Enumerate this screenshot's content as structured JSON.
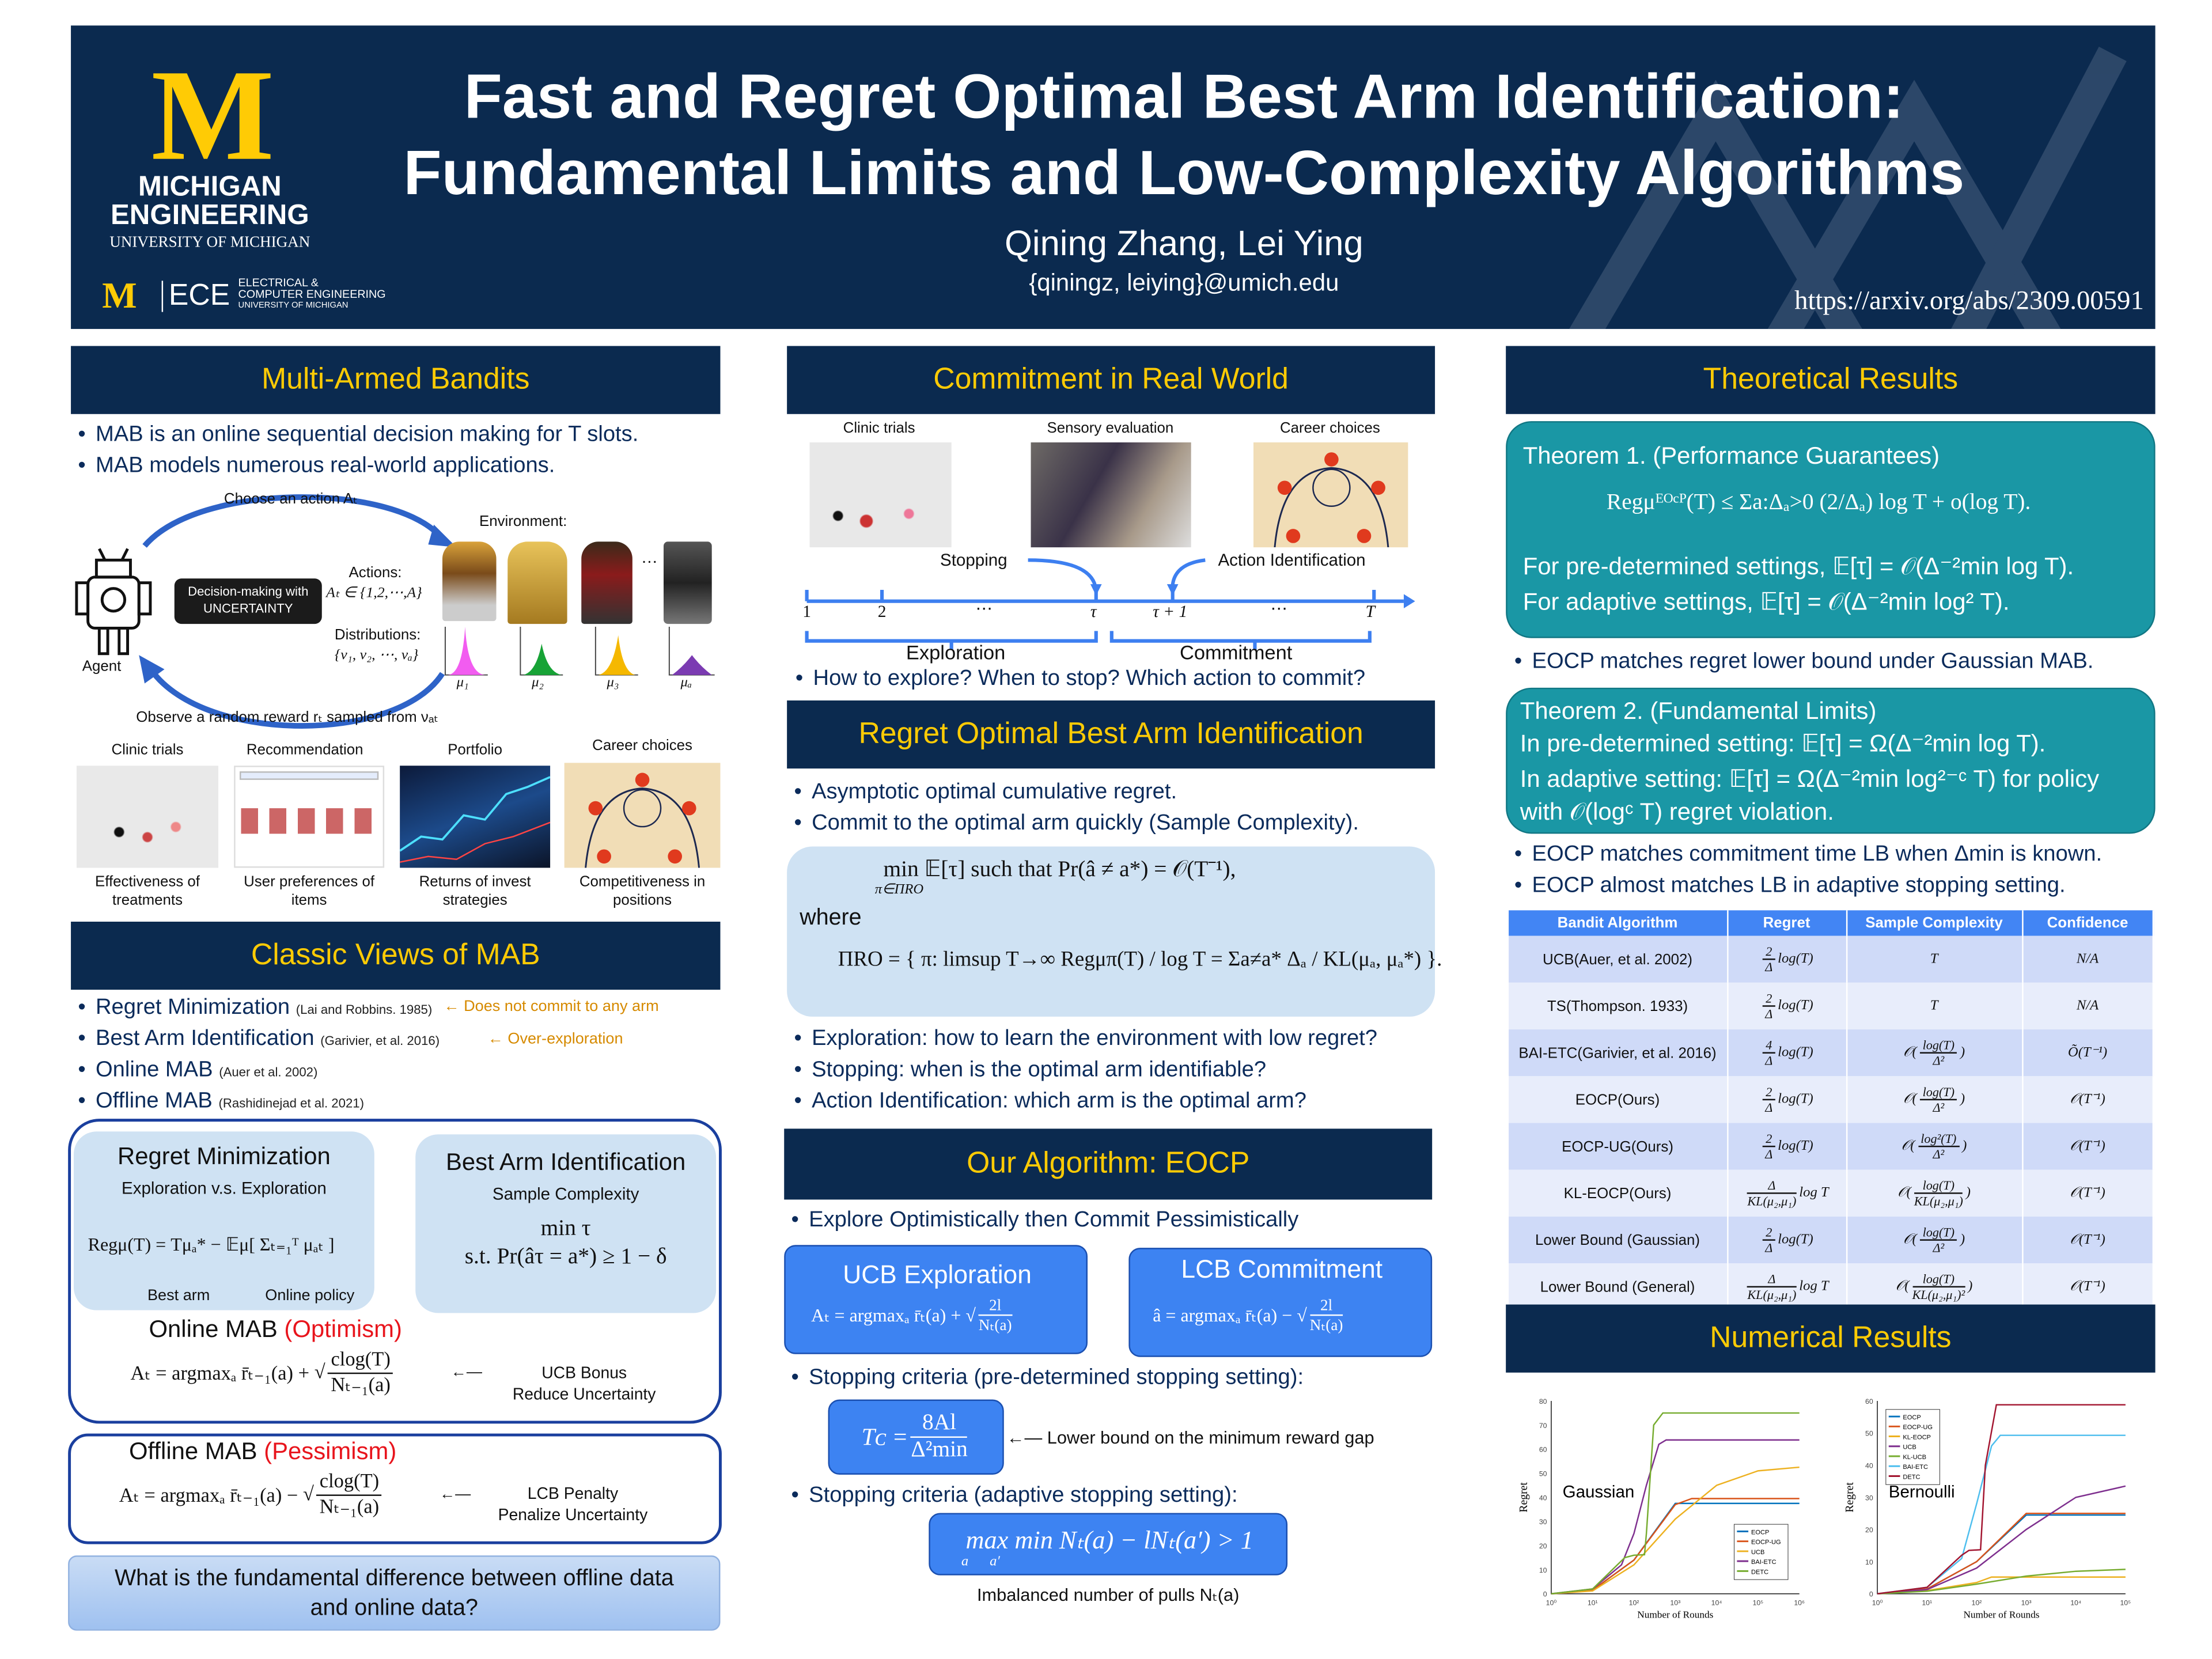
{
  "header": {
    "logo_letter": "M",
    "logo_line1": "MICHIGAN",
    "logo_line2": "ENGINEERING",
    "logo_line3": "UNIVERSITY OF MICHIGAN",
    "ece_logo": "ECE",
    "ece_line1": "ELECTRICAL &",
    "ece_line2": "COMPUTER ENGINEERING",
    "ece_line3": "UNIVERSITY OF MICHIGAN",
    "title_line1": "Fast and Regret Optimal Best Arm Identification:",
    "title_line2": "Fundamental Limits and Low-Complexity Algorithms",
    "authors": "Qining Zhang, Lei Ying",
    "email": "{qiningz, leiying}@umich.edu",
    "arxiv": "https://arxiv.org/abs/2309.00591"
  },
  "colors": {
    "navy": "#0b2a4f",
    "maize": "#ffcb05",
    "teal": "#1a97a5",
    "blue": "#3d83f2",
    "light_blue": "#cfe2f3"
  },
  "mab": {
    "title": "Multi-Armed Bandits",
    "bullets": [
      "MAB is an online sequential decision making for T slots.",
      "MAB models numerous real-world applications."
    ],
    "choose_action": "Choose an action Aₜ",
    "environment": "Environment:",
    "decision_box": [
      "Decision-making with",
      "UNCERTAINTY"
    ],
    "actions_label": "Actions:",
    "actions_set": "Aₜ ∈ {1,2,⋯,A}",
    "distributions_label": "Distributions:",
    "distributions_set": "{ν₁, ν₂, ⋯, νₐ}",
    "agent": "Agent",
    "dots": "…",
    "means": [
      "μ₁",
      "μ₂",
      "μ₃",
      "μₐ"
    ],
    "observe": "Observe a random reward rₜ sampled from νₐₜ",
    "apps": [
      {
        "title": "Clinic trials",
        "caption": "Effectiveness of treatments"
      },
      {
        "title": "Recommendation",
        "caption": "User preferences of items"
      },
      {
        "title": "Portfolio",
        "caption": "Returns of invest strategies"
      },
      {
        "title": "Career choices",
        "caption": "Competitiveness in positions"
      }
    ]
  },
  "classic": {
    "title": "Classic Views of MAB",
    "items": [
      {
        "label": "Regret Minimization",
        "cite": "(Lai and Robbins. 1985)",
        "note": "Does not commit to any arm"
      },
      {
        "label": "Best Arm Identification",
        "cite": "(Garivier, et al. 2016)",
        "note": "Over-exploration"
      },
      {
        "label": "Online MAB",
        "cite": "(Auer et al. 2002)"
      },
      {
        "label": "Offline MAB",
        "cite": "(Rashidinejad et al. 2021)"
      }
    ],
    "rm_title": "Regret Minimization",
    "rm_sub": "Exploration v.s. Exploration",
    "rm_formula": "Regμ(T) = Tμₐ* − 𝔼μ[ Σₜ₌₁ᵀ μₐₜ ]",
    "best_arm": "Best arm",
    "online_policy": "Online policy",
    "bai_title": "Best Arm Identification",
    "bai_sub": "Sample Complexity",
    "bai_line1": "min τ",
    "bai_line2": "s.t. Pr(âτ = a*) ≥ 1 − δ",
    "online_title": "Online MAB",
    "online_paren": "(Optimism)",
    "online_formula_pre": "Aₜ = argmaxₐ r̄ₜ₋₁(a) +",
    "online_num": "clog(T)",
    "online_den": "Nₜ₋₁(a)",
    "ucb_bonus": [
      "UCB Bonus",
      "Reduce Uncertainty"
    ],
    "offline_title": "Offline MAB",
    "offline_paren": "(Pessimism)",
    "offline_formula_pre": "Aₜ = argmaxₐ r̄ₜ₋₁(a) −",
    "offline_num": "clog(T)",
    "offline_den": "Nₜ₋₁(a)",
    "lcb_penalty": [
      "LCB Penalty",
      "Penalize Uncertainty"
    ],
    "question": "What is the fundamental difference between offline data and online data?"
  },
  "commitment": {
    "title": "Commitment in Real World",
    "images": [
      "Clinic trials",
      "Sensory evaluation",
      "Career choices"
    ],
    "stopping": "Stopping",
    "action_id": "Action Identification",
    "ticks": [
      "1",
      "2",
      "⋯",
      "τ",
      "τ + 1",
      "⋯",
      "T"
    ],
    "exploration": "Exploration",
    "commitment": "Commitment",
    "question": "How to explore? When to stop? Which action to commit?"
  },
  "robai": {
    "title": "Regret Optimal Best Arm Identification",
    "bullets": [
      "Asymptotic optimal cumulative regret.",
      "Commit to the optimal arm quickly (Sample Complexity)."
    ],
    "formula1": "min  𝔼[τ] such that Pr(â ≠ a*) = 𝒪(T⁻¹),",
    "formula1_sub": "π∈ΠRO",
    "where": "where",
    "formula2": "ΠRO = { π: limsup T→∞  Regμπ(T) / log T  =  Σa≠a*  Δₐ / KL(μₐ, μₐ*) }.",
    "bullets2": [
      "Exploration: how to learn the environment with low regret?",
      "Stopping: when is the optimal arm identifiable?",
      "Action Identification: which arm is the optimal arm?"
    ]
  },
  "eocp": {
    "title": "Our Algorithm: EOCP",
    "bullet": "Explore Optimistically then Commit Pessimistically",
    "ucb_title": "UCB Exploration",
    "ucb_formula": "Aₜ = argmaxₐ r̄ₜ(a) +",
    "ucb_num": "2l",
    "ucb_den": "Nₜ(a)",
    "lcb_title": "LCB Commitment",
    "lcb_formula": "â = argmaxₐ r̄ₜ(a) −",
    "lcb_num": "2l",
    "lcb_den": "Nₜ(a)",
    "stop1": "Stopping criteria (pre-determined stopping setting):",
    "tc_lhs": "Tᴄ =",
    "tc_num": "8Al",
    "tc_den": "Δ²min",
    "tc_note": "Lower bound on the minimum reward gap",
    "stop2": "Stopping criteria (adaptive stopping setting):",
    "adaptive": "max min Nₜ(a) − lNₜ(a′) > 1",
    "adaptive_sub": "a      a′",
    "adaptive_note": "Imbalanced  number of pulls Nₜ(a)"
  },
  "theory": {
    "title": "Theoretical Results",
    "thm1_title": "Theorem 1. (Performance Guarantees)",
    "thm1_formula": "Regμᴱᴼᶜᴾ(T) ≤  Σa:Δₐ>0  (2/Δₐ) log T + o(log T).",
    "thm1_line2": "For pre-determined settings, 𝔼[τ] = 𝒪(Δ⁻²min log T).",
    "thm1_line3": "For adaptive settings, 𝔼[τ] = 𝒪(Δ⁻²min log² T).",
    "bullet1": "EOCP matches regret lower bound under Gaussian MAB.",
    "thm2_title": "Theorem 2. (Fundamental Limits)",
    "thm2_line1": "In pre-determined setting: 𝔼[τ] = Ω(Δ⁻²min log T).",
    "thm2_line2": "In adaptive setting: 𝔼[τ] = Ω(Δ⁻²min log²⁻ᶜ T) for policy",
    "thm2_line3": "with 𝒪(logᶜ T) regret violation.",
    "bullets2": [
      "EOCP matches commitment time LB when Δmin is known.",
      "EOCP almost matches LB in adaptive stopping setting."
    ]
  },
  "table": {
    "headers": [
      "Bandit Algorithm",
      "Regret",
      "Sample Complexity",
      "Confidence"
    ],
    "rows": [
      {
        "algo": "UCB(Auer, et al. 2002)",
        "rn": "2",
        "rd": "Δ",
        "rr": "log(T)",
        "sp": "",
        "sn": "T",
        "sd": "",
        "conf": "N/A"
      },
      {
        "algo": "TS(Thompson. 1933)",
        "rn": "2",
        "rd": "Δ",
        "rr": "log(T)",
        "sp": "",
        "sn": "T",
        "sd": "",
        "conf": "N/A"
      },
      {
        "algo": "BAI-ETC(Garivier, et al. 2016)",
        "rn": "4",
        "rd": "Δ",
        "rr": "log(T)",
        "sp": "𝒪",
        "sn": "log(T)",
        "sd": "Δ²",
        "conf": "Õ(T⁻¹)"
      },
      {
        "algo": "EOCP(Ours)",
        "rn": "2",
        "rd": "Δ",
        "rr": "log(T)",
        "sp": "𝒪",
        "sn": "log(T)",
        "sd": "Δ²",
        "conf": "𝒪(T⁻¹)"
      },
      {
        "algo": "EOCP-UG(Ours)",
        "rn": "2",
        "rd": "Δ",
        "rr": "log(T)",
        "sp": "𝒪",
        "sn": "log²(T)",
        "sd": "Δ²",
        "conf": "𝒪(T⁻¹)"
      },
      {
        "algo": "KL-EOCP(Ours)",
        "rn": "Δ",
        "rd": "KL(μ₂,μ₁)",
        "rr": "log T",
        "sp": "𝒪",
        "sn": "log(T)",
        "sd": "KL(μ₂,μ₁)",
        "conf": "𝒪(T⁻¹)"
      },
      {
        "algo": "Lower Bound (Gaussian)",
        "rn": "2",
        "rd": "Δ",
        "rr": "log(T)",
        "sp": "𝒪",
        "sn": "log(T)",
        "sd": "Δ²",
        "conf": "𝒪(T⁻¹)"
      },
      {
        "algo": "Lower Bound (General)",
        "rn": "Δ",
        "rd": "KL(μ₂,μ₁)",
        "rr": "log T",
        "sp": "𝒪",
        "sn": "log(T)",
        "sd": "KL(μ₂,μ₁)²",
        "conf": "𝒪(T⁻¹)"
      }
    ]
  },
  "numerical": {
    "title": "Numerical Results"
  },
  "chart_data": [
    {
      "type": "line",
      "annotation": "Gaussian",
      "xlabel": "Number of Rounds",
      "ylabel": "Regret",
      "xscale": "log",
      "xlim": [
        1,
        1000000
      ],
      "ylim": [
        0,
        80
      ],
      "xticks": [
        "10⁰",
        "10¹",
        "10²",
        "10³",
        "10⁴",
        "10⁵",
        "10⁶"
      ],
      "yticks": [
        "0",
        "10",
        "20",
        "30",
        "40",
        "50",
        "60",
        "70",
        "80"
      ],
      "legend": "bottom-right",
      "series": [
        {
          "name": "EOCP",
          "color": "#0072bd",
          "x": [
            1,
            10,
            100,
            1000,
            1000000
          ],
          "y": [
            0,
            1.5,
            14,
            37.5,
            37.5
          ]
        },
        {
          "name": "EOCP-UG",
          "color": "#d95319",
          "x": [
            1,
            10,
            100,
            1000,
            2500,
            1000000
          ],
          "y": [
            0,
            1.5,
            14,
            37,
            39.5,
            39.5
          ]
        },
        {
          "name": "UCB",
          "color": "#edb120",
          "x": [
            1,
            10,
            100,
            1000,
            10000,
            100000,
            1000000
          ],
          "y": [
            0,
            1.2,
            12,
            31,
            45,
            51,
            52.5
          ]
        },
        {
          "name": "BAI-ETC",
          "color": "#7e2f8e",
          "x": [
            1,
            10,
            50,
            100,
            200,
            400,
            600,
            1000000
          ],
          "y": [
            0,
            2,
            12,
            25,
            45,
            62,
            63.8,
            63.8
          ]
        },
        {
          "name": "DETC",
          "color": "#77ac30",
          "x": [
            1,
            10,
            60,
            100,
            180,
            200,
            300,
            500,
            1000000
          ],
          "y": [
            0,
            2,
            15,
            16,
            16.2,
            25,
            70,
            75,
            75
          ]
        }
      ]
    },
    {
      "type": "line",
      "annotation": "Bernoulli",
      "xlabel": "Number of Rounds",
      "ylabel": "Regret",
      "xscale": "log",
      "xlim": [
        1,
        100000
      ],
      "ylim": [
        0,
        60
      ],
      "xticks": [
        "10⁰",
        "10¹",
        "10²",
        "10³",
        "10⁴",
        "10⁵"
      ],
      "yticks": [
        "0",
        "10",
        "20",
        "30",
        "40",
        "50",
        "60"
      ],
      "legend": "top-left",
      "series": [
        {
          "name": "EOCP",
          "color": "#0072bd",
          "x": [
            1,
            10,
            100,
            1000,
            100000
          ],
          "y": [
            0,
            1.5,
            10,
            24.5,
            24.5
          ]
        },
        {
          "name": "EOCP-UG",
          "color": "#d95319",
          "x": [
            1,
            10,
            100,
            1000,
            100000
          ],
          "y": [
            0,
            1.5,
            10,
            25,
            25
          ]
        },
        {
          "name": "KL-EOCP",
          "color": "#edb120",
          "x": [
            1,
            10,
            100,
            200,
            100000
          ],
          "y": [
            0,
            1,
            3.5,
            5.2,
            5.2
          ]
        },
        {
          "name": "UCB",
          "color": "#7e2f8e",
          "x": [
            1,
            10,
            100,
            1000,
            10000,
            100000
          ],
          "y": [
            0,
            1.3,
            8,
            20,
            30,
            33.5
          ]
        },
        {
          "name": "KL-UCB",
          "color": "#77ac30",
          "x": [
            1,
            10,
            100,
            1000,
            10000,
            100000
          ],
          "y": [
            0,
            0.8,
            3,
            5.5,
            7,
            7.6
          ]
        },
        {
          "name": "BAI-ETC",
          "color": "#4dbeee",
          "x": [
            1,
            10,
            50,
            100,
            200,
            300,
            100000
          ],
          "y": [
            0,
            2,
            11,
            28,
            46,
            49.3,
            49.3
          ]
        },
        {
          "name": "DETC",
          "color": "#a2142f",
          "x": [
            1,
            10,
            50,
            70,
            120,
            150,
            250,
            100000
          ],
          "y": [
            0,
            2,
            12,
            13.5,
            13.7,
            40,
            58.8,
            58.8
          ]
        }
      ]
    }
  ]
}
